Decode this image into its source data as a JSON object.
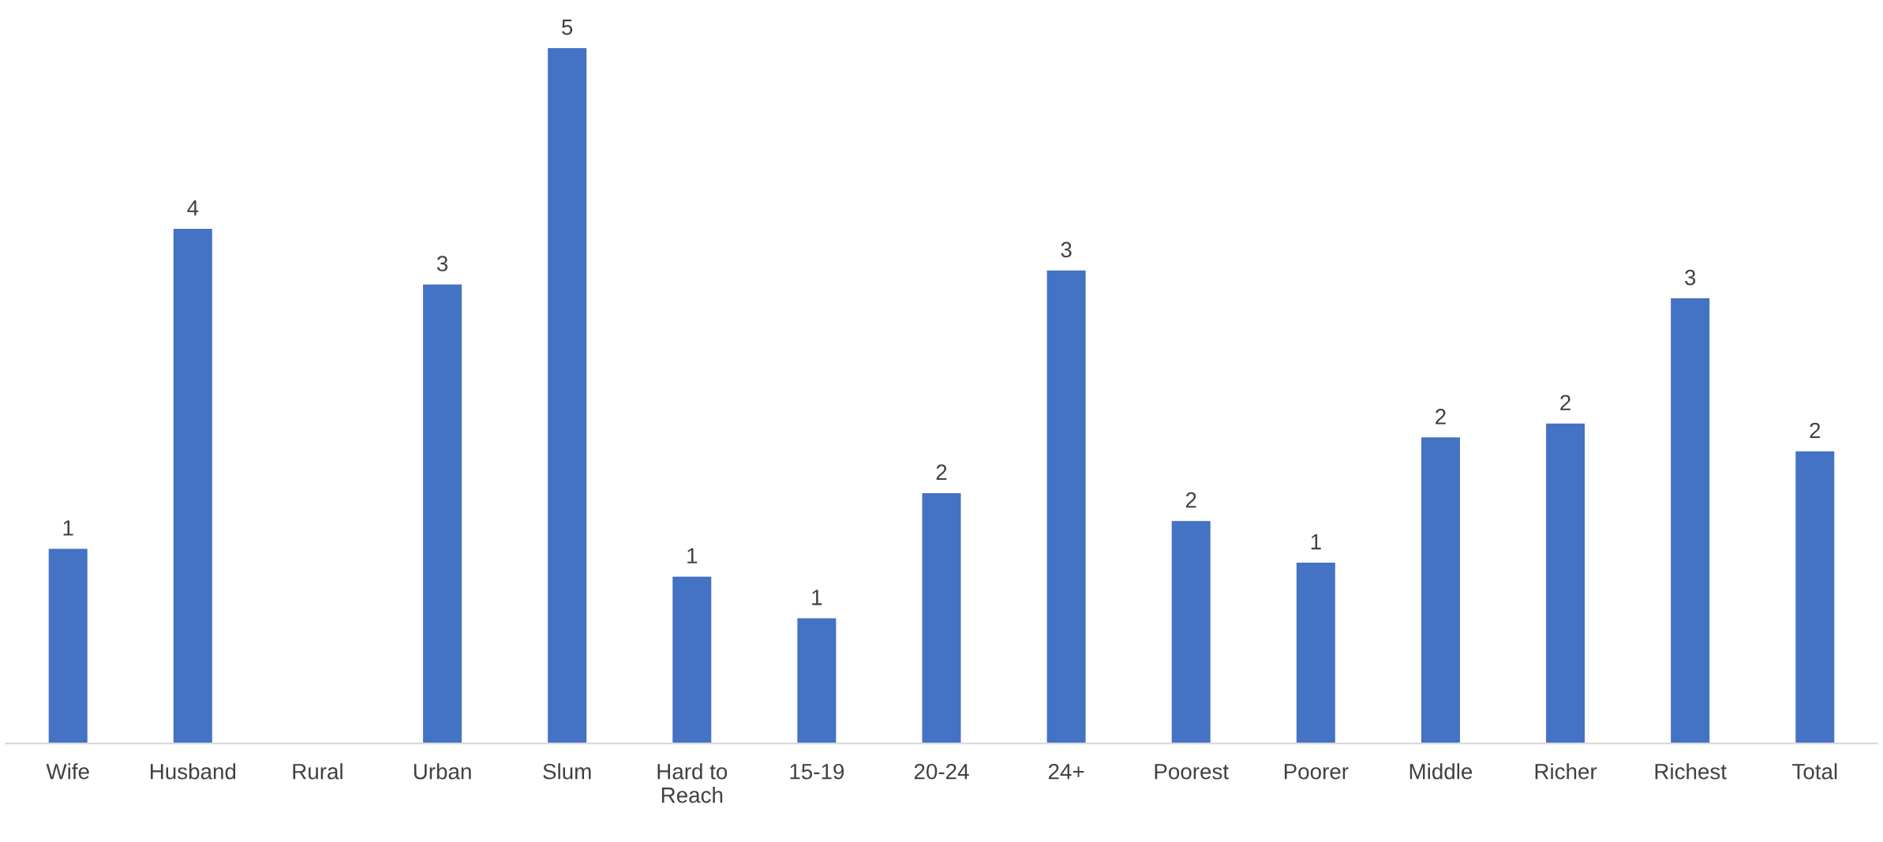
{
  "chart_data": {
    "type": "bar",
    "categories": [
      "Wife",
      "Husband",
      "Rural",
      "Urban",
      "Slum",
      "Hard to\nReach",
      "15-19",
      "20-24",
      "24+",
      "Poorest",
      "Poorer",
      "Middle",
      "Richer",
      "Richest",
      "Total"
    ],
    "values": [
      1.4,
      3.7,
      null,
      3.3,
      5.0,
      1.2,
      0.9,
      1.8,
      3.4,
      1.6,
      1.3,
      2.2,
      2.3,
      3.2,
      2.1
    ],
    "value_labels": [
      "1",
      "4",
      null,
      "3",
      "5",
      "1",
      "1",
      "2",
      "3",
      "2",
      "1",
      "2",
      "2",
      "3",
      "2"
    ],
    "color": "#4472c4",
    "grid": false,
    "legend": false
  }
}
